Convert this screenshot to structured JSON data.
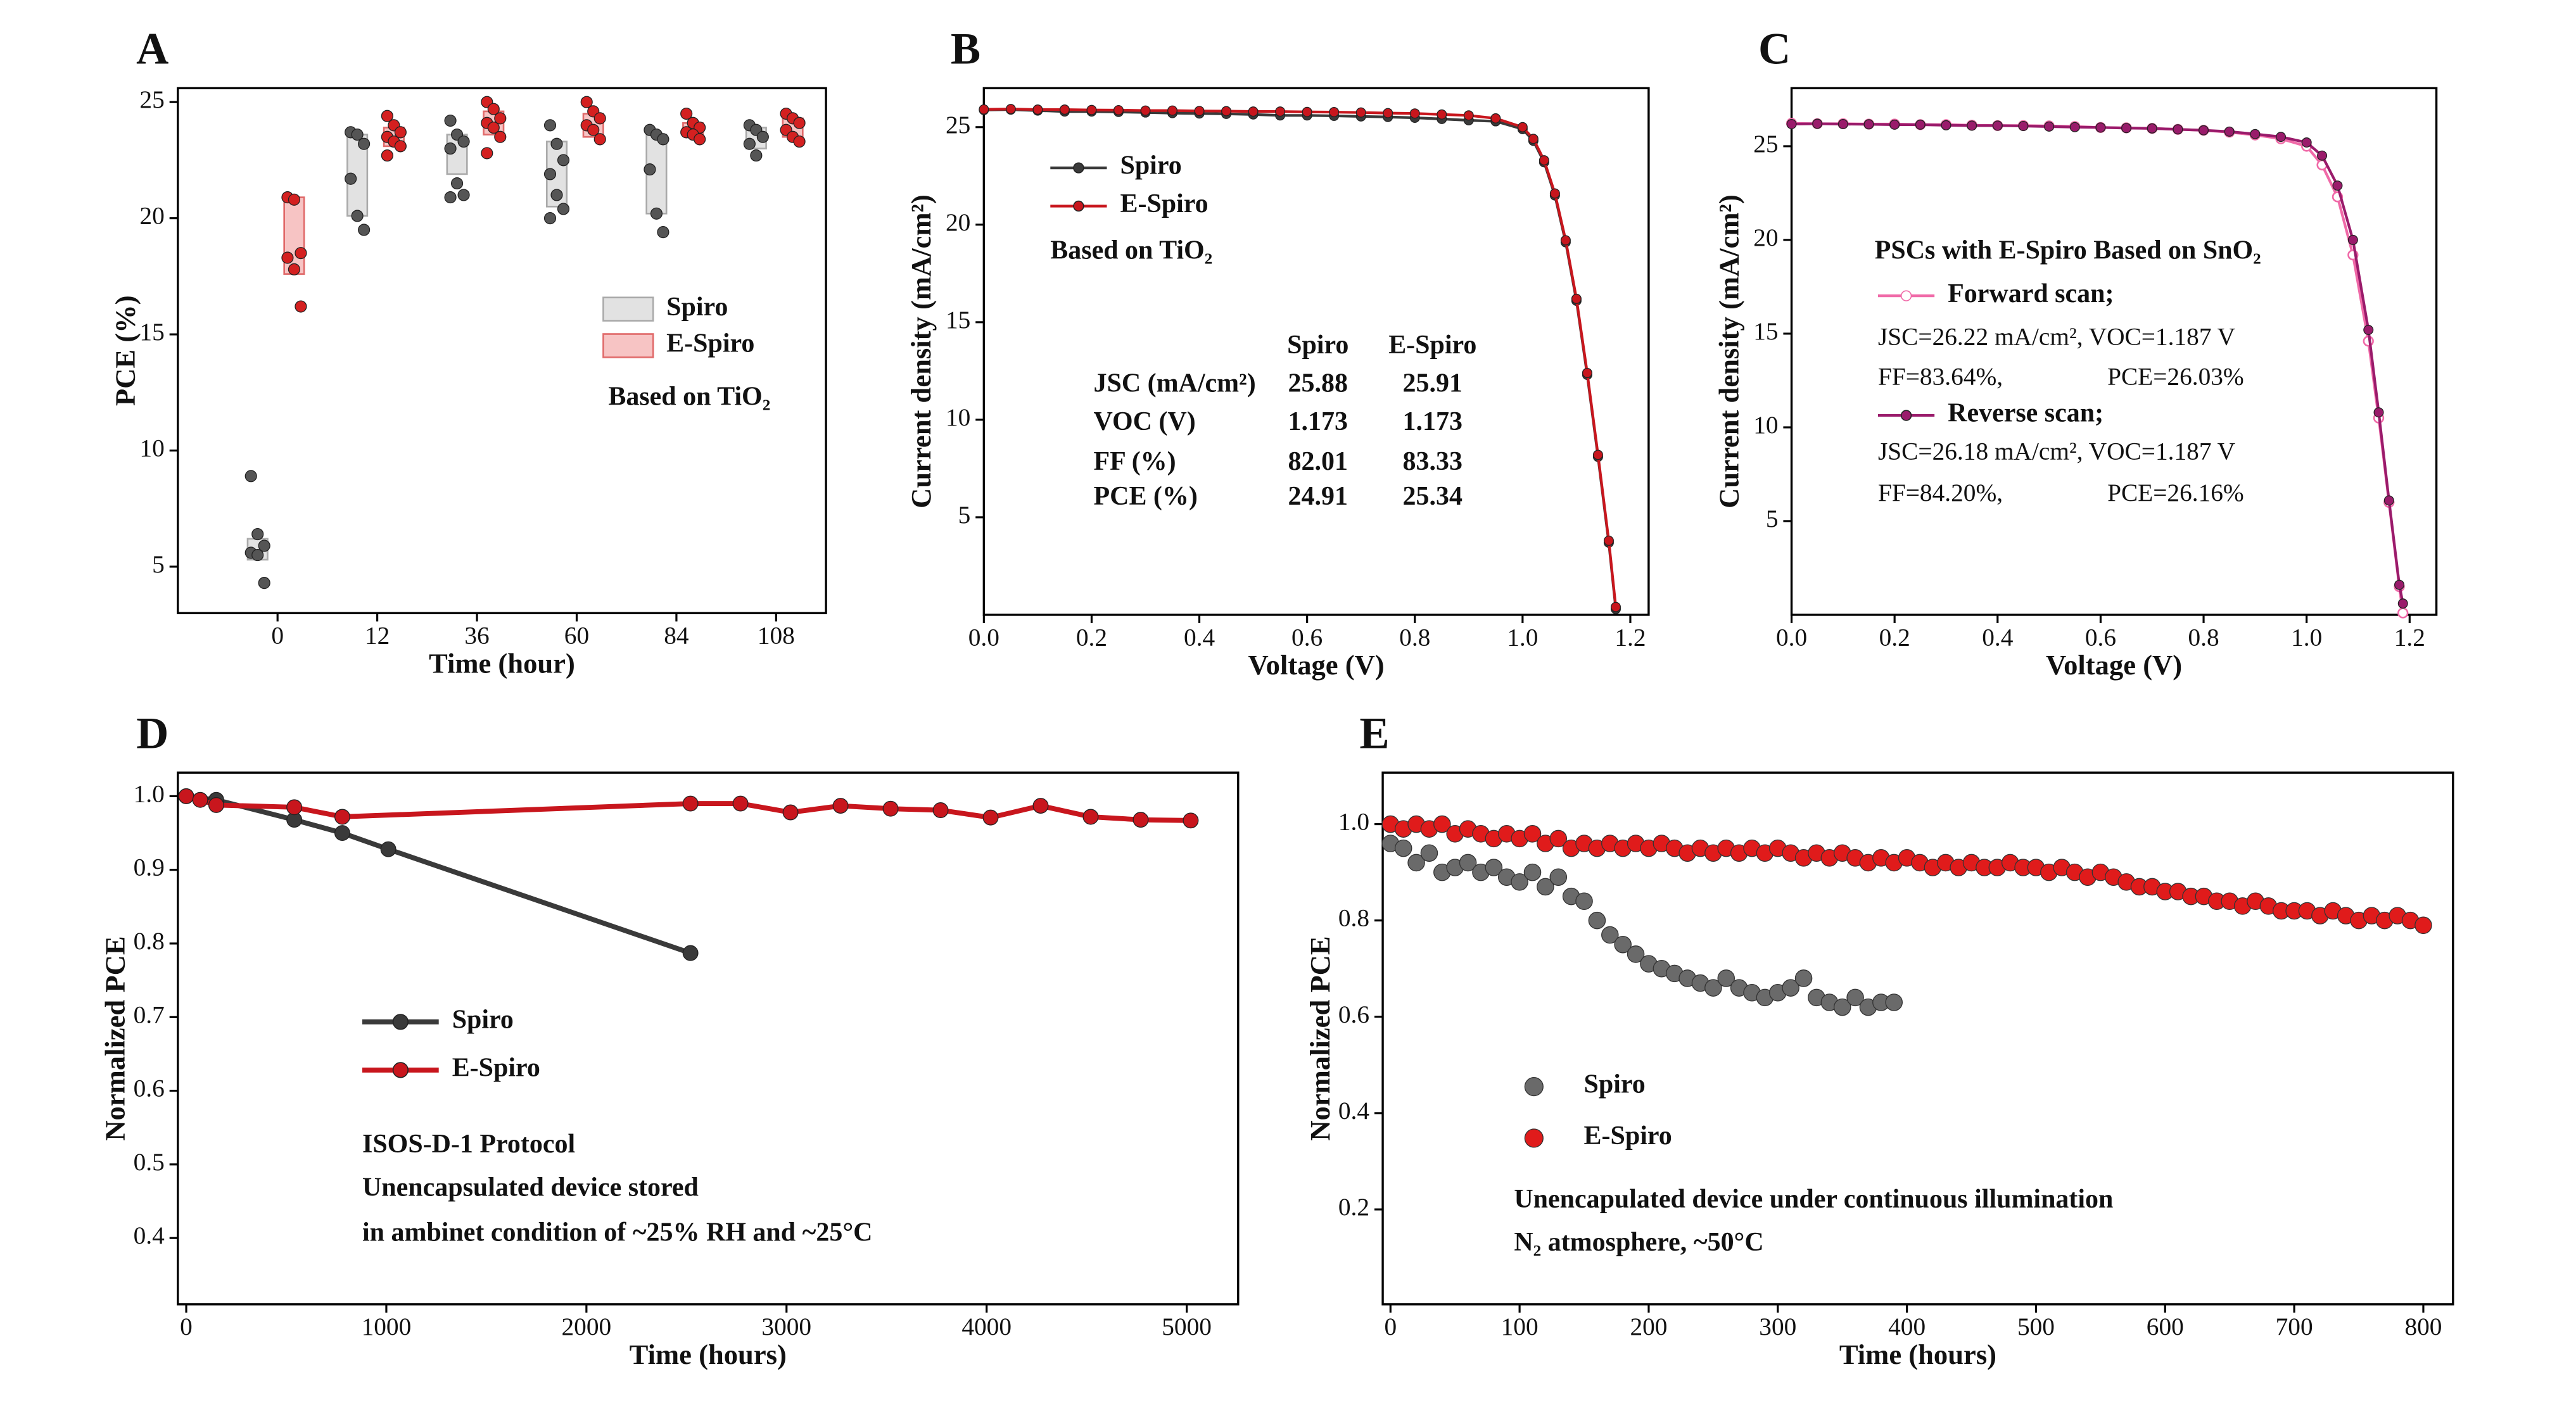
{
  "chart_data": [
    {
      "type": "box",
      "panel": "A",
      "x_label": "Time (hour)",
      "y_label": "PCE (%)",
      "categories": [
        "0",
        "12",
        "36",
        "60",
        "84",
        "108"
      ],
      "ylim": [
        3,
        25.6
      ],
      "yticks": [
        5,
        10,
        15,
        20,
        25
      ],
      "series": [
        {
          "name": "Spiro",
          "color": "#555555",
          "box_color": "#e2e2e2",
          "values": [
            [
              8.9,
              6.4,
              5.9,
              5.6,
              5.5,
              4.3
            ],
            [
              23.7,
              23.6,
              23.2,
              21.7,
              20.1,
              19.5
            ],
            [
              24.2,
              23.6,
              23.3,
              23.0,
              21.5,
              21.0,
              20.9
            ],
            [
              24.0,
              23.2,
              22.5,
              21.9,
              21.0,
              20.4,
              20.0
            ],
            [
              23.8,
              23.6,
              23.4,
              22.1,
              20.2,
              19.4
            ],
            [
              24.0,
              23.8,
              23.5,
              23.2,
              22.7
            ]
          ],
          "box": [
            [
              5.3,
              6.2
            ],
            [
              20.1,
              23.6
            ],
            [
              21.9,
              23.6
            ],
            [
              20.5,
              23.3
            ],
            [
              20.2,
              23.6
            ],
            [
              23.0,
              23.9
            ]
          ]
        },
        {
          "name": "E-Spiro",
          "color": "#d42020",
          "box_color": "#f7c4c4",
          "values": [
            [
              20.9,
              20.8,
              18.5,
              18.3,
              17.8,
              16.2
            ],
            [
              24.4,
              24.0,
              23.7,
              23.5,
              23.3,
              23.1,
              22.7
            ],
            [
              25.0,
              24.7,
              24.3,
              24.1,
              23.9,
              23.5,
              22.8
            ],
            [
              25.0,
              24.6,
              24.3,
              24.0,
              23.8,
              23.4
            ],
            [
              24.5,
              24.1,
              23.9,
              23.7,
              23.6,
              23.4
            ],
            [
              24.5,
              24.3,
              24.1,
              23.8,
              23.5,
              23.3
            ]
          ],
          "box": [
            [
              17.6,
              20.9
            ],
            [
              23.1,
              23.9
            ],
            [
              23.6,
              24.6
            ],
            [
              23.5,
              24.5
            ],
            [
              23.6,
              24.1
            ],
            [
              23.5,
              24.3
            ]
          ]
        }
      ],
      "annotations": [
        "Based on TiO₂"
      ]
    },
    {
      "type": "line",
      "panel": "B",
      "x_label": "Voltage (V)",
      "y_label": "Current density (mA/cm²)",
      "xlim": [
        0,
        1.234
      ],
      "xticks": [
        {
          "value": 0,
          "label": "0.0"
        },
        0.2,
        0.4,
        0.6,
        0.8,
        {
          "value": 1,
          "label": "1.0"
        },
        1.2
      ],
      "ylim": [
        0,
        27
      ],
      "yticks": [
        5,
        10,
        15,
        20,
        25
      ],
      "x": [
        0,
        0.05,
        0.1,
        0.15,
        0.2,
        0.25,
        0.3,
        0.35,
        0.4,
        0.45,
        0.5,
        0.55,
        0.6,
        0.65,
        0.7,
        0.75,
        0.8,
        0.85,
        0.9,
        0.95,
        1.0,
        1.02,
        1.04,
        1.06,
        1.08,
        1.1,
        1.12,
        1.14,
        1.16,
        1.173
      ],
      "series": [
        {
          "name": "Spiro",
          "color": "#3a3a3a",
          "values": [
            25.88,
            25.9,
            25.85,
            25.8,
            25.8,
            25.78,
            25.75,
            25.72,
            25.7,
            25.68,
            25.65,
            25.6,
            25.6,
            25.58,
            25.55,
            25.52,
            25.48,
            25.42,
            25.35,
            25.3,
            24.9,
            24.3,
            23.2,
            21.5,
            19.1,
            16.1,
            12.3,
            8.1,
            3.7,
            0.3
          ]
        },
        {
          "name": "E-Spiro",
          "color": "#c8161d",
          "values": [
            25.91,
            25.93,
            25.9,
            25.9,
            25.88,
            25.87,
            25.85,
            25.85,
            25.83,
            25.82,
            25.8,
            25.8,
            25.78,
            25.77,
            25.75,
            25.72,
            25.7,
            25.65,
            25.6,
            25.45,
            25.0,
            24.4,
            23.3,
            21.6,
            19.2,
            16.2,
            12.4,
            8.2,
            3.8,
            0.4
          ]
        }
      ],
      "annotations": [
        "Based on TiO₂"
      ],
      "table": {
        "columns": [
          "Spiro",
          "E-Spiro"
        ],
        "rows": [
          {
            "label": "JSC (mA/cm²)",
            "values": [
              25.88,
              25.91
            ]
          },
          {
            "label": "VOC (V)",
            "values": [
              1.173,
              1.173
            ]
          },
          {
            "label": "FF (%)",
            "values": [
              82.01,
              83.33
            ]
          },
          {
            "label": "PCE (%)",
            "values": [
              24.91,
              25.34
            ]
          }
        ]
      }
    },
    {
      "type": "line",
      "panel": "C",
      "x_label": "Voltage (V)",
      "y_label": "Current density (mA/cm²)",
      "xlim": [
        0,
        1.252
      ],
      "xticks": [
        {
          "value": 0,
          "label": "0.0"
        },
        0.2,
        0.4,
        0.6,
        0.8,
        {
          "value": 1,
          "label": "1.0"
        },
        1.2
      ],
      "ylim": [
        0,
        28.1
      ],
      "yticks": [
        5,
        10,
        15,
        20,
        25
      ],
      "x": [
        0,
        0.05,
        0.1,
        0.15,
        0.2,
        0.25,
        0.3,
        0.35,
        0.4,
        0.45,
        0.5,
        0.55,
        0.6,
        0.65,
        0.7,
        0.75,
        0.8,
        0.85,
        0.9,
        0.95,
        1.0,
        1.03,
        1.06,
        1.09,
        1.12,
        1.14,
        1.16,
        1.18,
        1.187
      ],
      "series": [
        {
          "name": "Forward scan;",
          "color": "#f06aa8",
          "open": true,
          "values": [
            26.22,
            26.2,
            26.2,
            26.18,
            26.18,
            26.15,
            26.15,
            26.12,
            26.1,
            26.1,
            26.08,
            26.05,
            26.0,
            25.98,
            25.95,
            25.9,
            25.85,
            25.75,
            25.6,
            25.4,
            25.0,
            24.0,
            22.3,
            19.2,
            14.6,
            10.5,
            6.0,
            1.5,
            0.1
          ]
        },
        {
          "name": "Reverse scan;",
          "color": "#9a1b6b",
          "values": [
            26.18,
            26.2,
            26.18,
            26.17,
            26.15,
            26.15,
            26.12,
            26.1,
            26.1,
            26.08,
            26.05,
            26.02,
            26.0,
            25.97,
            25.95,
            25.9,
            25.85,
            25.78,
            25.65,
            25.5,
            25.2,
            24.5,
            22.9,
            20.0,
            15.2,
            10.8,
            6.1,
            1.6,
            0.6
          ]
        }
      ],
      "annotations": [
        "PSCs with E-Spiro Based on  SnO₂",
        "JSC=26.22 mA/cm²,  VOC=1.187 V",
        "FF=83.64%,",
        "PCE=26.03%",
        "JSC=26.18 mA/cm²,  VOC=1.187 V",
        "FF=84.20%,",
        "PCE=26.16%"
      ]
    },
    {
      "type": "line",
      "panel": "D",
      "x_label": "Time (hours)",
      "y_label": "Normalized PCE",
      "xlim": [
        -42,
        5257
      ],
      "xticks": [
        0,
        1000,
        2000,
        3000,
        4000,
        5000
      ],
      "ylim": [
        0.31,
        1.032
      ],
      "yticks": [
        0.4,
        0.5,
        0.6,
        0.7,
        0.8,
        0.9,
        {
          "value": 1,
          "label": "1.0"
        }
      ],
      "series": [
        {
          "name": "Spiro",
          "color": "#3a3a3a",
          "x": [
            0,
            150,
            540,
            780,
            1010,
            2520
          ],
          "values": [
            1.0,
            0.995,
            0.968,
            0.95,
            0.928,
            0.787
          ]
        },
        {
          "name": "E-Spiro",
          "color": "#c8161d",
          "x": [
            0,
            70,
            150,
            540,
            780,
            2520,
            2770,
            3020,
            3270,
            3520,
            3770,
            4020,
            4270,
            4520,
            4770,
            5020
          ],
          "values": [
            1.0,
            0.995,
            0.988,
            0.985,
            0.972,
            0.99,
            0.99,
            0.978,
            0.987,
            0.983,
            0.981,
            0.971,
            0.987,
            0.972,
            0.968,
            0.967
          ]
        }
      ],
      "annotations": [
        "ISOS-D-1 Protocol",
        "Unencapsulated device stored",
        "in ambinet condition of ~25% RH and ~25°C"
      ]
    },
    {
      "type": "scatter",
      "panel": "E",
      "x_label": "Time (hours)",
      "y_label": "Normalized PCE",
      "xlim": [
        -6,
        823
      ],
      "xticks": [
        0,
        100,
        200,
        300,
        400,
        500,
        600,
        700,
        800
      ],
      "ylim": [
        0.003,
        1.107
      ],
      "yticks": [
        0.2,
        0.4,
        0.6,
        0.8,
        {
          "value": 1,
          "label": "1.0"
        }
      ],
      "series": [
        {
          "name": "Spiro",
          "color": "#6a6a6a",
          "x": [
            0,
            10,
            20,
            30,
            40,
            50,
            60,
            70,
            80,
            90,
            100,
            110,
            120,
            130,
            140,
            150,
            160,
            170,
            180,
            190,
            200,
            210,
            220,
            230,
            240,
            250,
            260,
            270,
            280,
            290,
            300,
            310,
            320,
            330,
            340,
            350,
            360,
            370,
            380,
            390
          ],
          "values": [
            0.96,
            0.95,
            0.92,
            0.94,
            0.9,
            0.91,
            0.92,
            0.9,
            0.91,
            0.89,
            0.88,
            0.9,
            0.87,
            0.89,
            0.85,
            0.84,
            0.8,
            0.77,
            0.75,
            0.73,
            0.71,
            0.7,
            0.69,
            0.68,
            0.67,
            0.66,
            0.68,
            0.66,
            0.65,
            0.64,
            0.65,
            0.66,
            0.68,
            0.64,
            0.63,
            0.62,
            0.64,
            0.62,
            0.63,
            0.63
          ]
        },
        {
          "name": "E-Spiro",
          "color": "#e01b1b",
          "x": [
            0,
            10,
            20,
            30,
            40,
            50,
            60,
            70,
            80,
            90,
            100,
            110,
            120,
            130,
            140,
            150,
            160,
            170,
            180,
            190,
            200,
            210,
            220,
            230,
            240,
            250,
            260,
            270,
            280,
            290,
            300,
            310,
            320,
            330,
            340,
            350,
            360,
            370,
            380,
            390,
            400,
            410,
            420,
            430,
            440,
            450,
            460,
            470,
            480,
            490,
            500,
            510,
            520,
            530,
            540,
            550,
            560,
            570,
            580,
            590,
            600,
            610,
            620,
            630,
            640,
            650,
            660,
            670,
            680,
            690,
            700,
            710,
            720,
            730,
            740,
            750,
            760,
            770,
            780,
            790,
            800
          ],
          "values": [
            1.0,
            0.99,
            1.0,
            0.99,
            1.0,
            0.98,
            0.99,
            0.98,
            0.97,
            0.98,
            0.97,
            0.98,
            0.96,
            0.97,
            0.95,
            0.96,
            0.95,
            0.96,
            0.95,
            0.96,
            0.95,
            0.96,
            0.95,
            0.94,
            0.95,
            0.94,
            0.95,
            0.94,
            0.95,
            0.94,
            0.95,
            0.94,
            0.93,
            0.94,
            0.93,
            0.94,
            0.93,
            0.92,
            0.93,
            0.92,
            0.93,
            0.92,
            0.91,
            0.92,
            0.91,
            0.92,
            0.91,
            0.91,
            0.92,
            0.91,
            0.91,
            0.9,
            0.91,
            0.9,
            0.89,
            0.9,
            0.89,
            0.88,
            0.87,
            0.87,
            0.86,
            0.86,
            0.85,
            0.85,
            0.84,
            0.84,
            0.83,
            0.84,
            0.83,
            0.82,
            0.82,
            0.82,
            0.81,
            0.82,
            0.81,
            0.8,
            0.81,
            0.8,
            0.81,
            0.8,
            0.79
          ]
        }
      ],
      "annotations": [
        "Unencapulated device under continuous illumination",
        "N₂ atmosphere, ~50°C"
      ]
    }
  ]
}
